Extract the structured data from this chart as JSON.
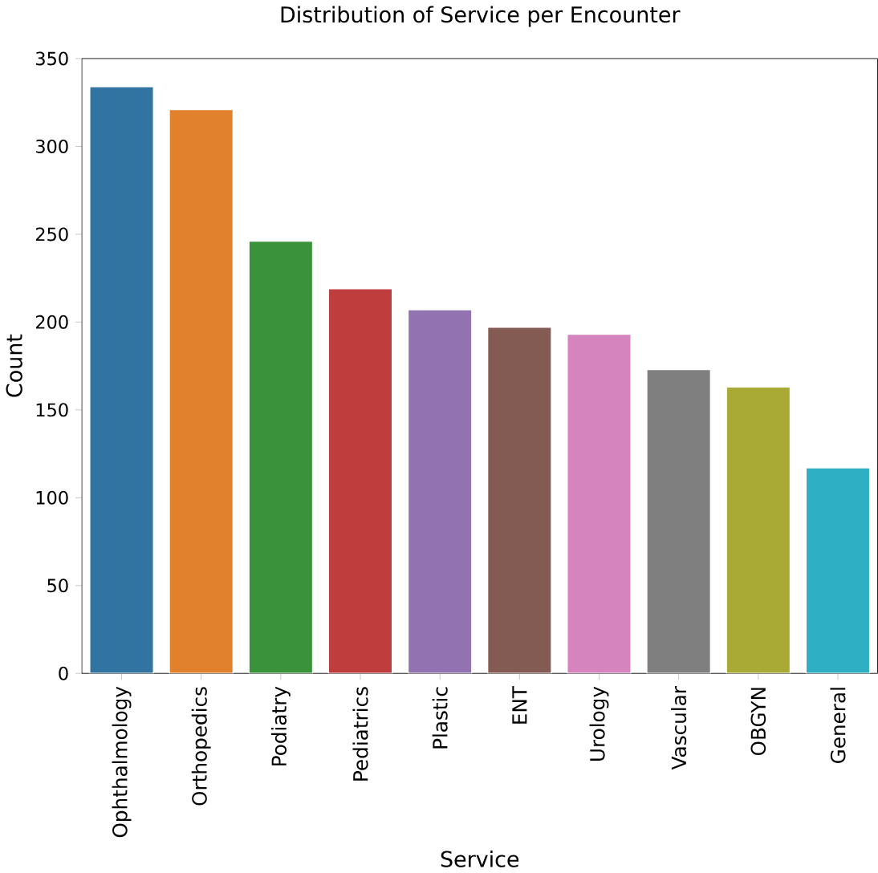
{
  "chart_data": {
    "type": "bar",
    "title": "Distribution of Service per Encounter",
    "xlabel": "Service",
    "ylabel": "Count",
    "categories": [
      "Ophthalmology",
      "Orthopedics",
      "Podiatry",
      "Pediatrics",
      "Plastic",
      "ENT",
      "Urology",
      "Vascular",
      "OBGYN",
      "General"
    ],
    "values": [
      334,
      321,
      246,
      219,
      207,
      197,
      193,
      173,
      163,
      117
    ],
    "colors": [
      "#3274a1",
      "#e1812c",
      "#3a923a",
      "#c03d3e",
      "#9372b2",
      "#845b53",
      "#d684bd",
      "#7f7f7f",
      "#a9aa35",
      "#2eb0c2"
    ],
    "ylim": [
      0,
      350
    ],
    "yticks": [
      0,
      50,
      100,
      150,
      200,
      250,
      300,
      350
    ]
  }
}
